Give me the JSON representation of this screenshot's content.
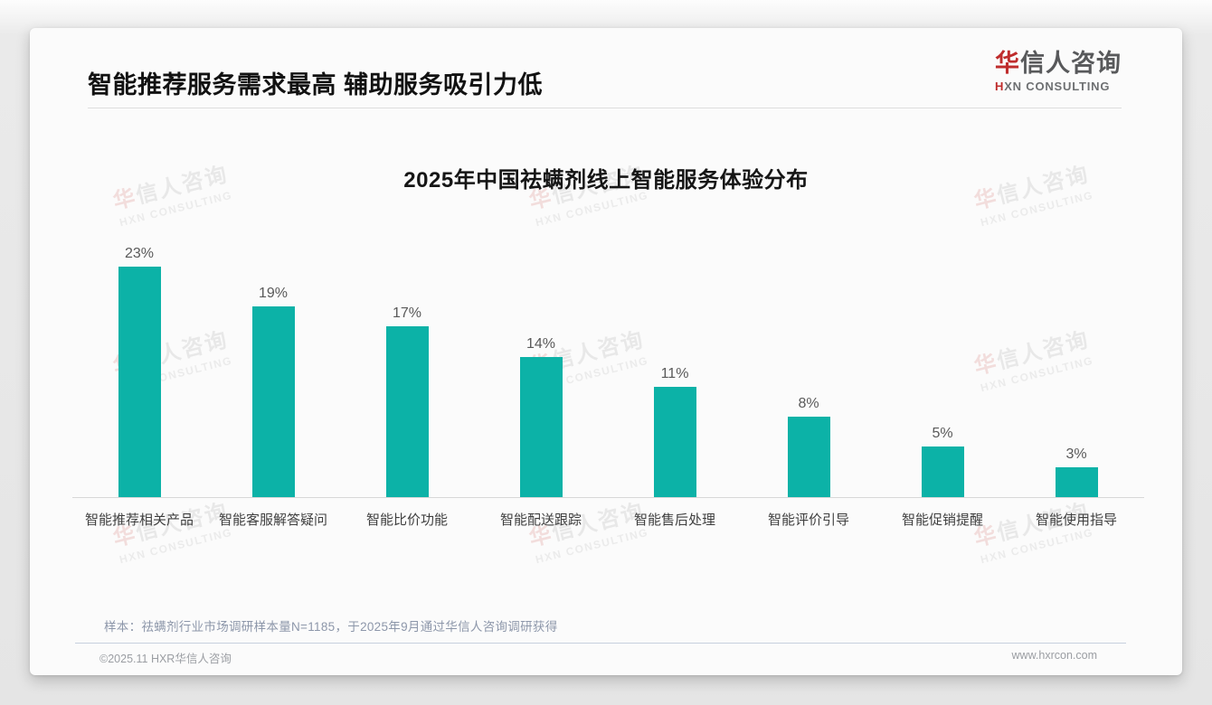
{
  "page": {
    "header": {
      "title": "智能推荐服务需求最高 辅助服务吸引力低",
      "logo": {
        "brand_red": "华",
        "brand_rest": "信人咨询",
        "subtitle_red": "H",
        "subtitle_rest": "XN CONSULTING"
      }
    },
    "footer": {
      "sample_note": "样本：祛螨剂行业市场调研样本量N=1185，于2025年9月通过华信人咨询调研获得",
      "copyright": "©2025.11 HXR华信人咨询",
      "website": "www.hxrcon.com"
    },
    "watermark": {
      "line1_red": "华",
      "line1_rest": "信人咨询",
      "line2": "HXN CONSULTING"
    }
  },
  "chart_data": {
    "type": "bar",
    "title": "2025年中国祛螨剂线上智能服务体验分布",
    "categories": [
      "智能推荐相关产品",
      "智能客服解答疑问",
      "智能比价功能",
      "智能配送跟踪",
      "智能售后处理",
      "智能评价引导",
      "智能促销提醒",
      "智能使用指导"
    ],
    "values": [
      23,
      19,
      17,
      14,
      11,
      8,
      5,
      3
    ],
    "value_labels": [
      "23%",
      "19%",
      "17%",
      "14%",
      "11%",
      "8%",
      "5%",
      "3%"
    ],
    "unit": "%",
    "bar_color": "#0cb2a7",
    "ylim": [
      0,
      25
    ],
    "grid": false,
    "legend": false,
    "xlabel": "",
    "ylabel": ""
  }
}
